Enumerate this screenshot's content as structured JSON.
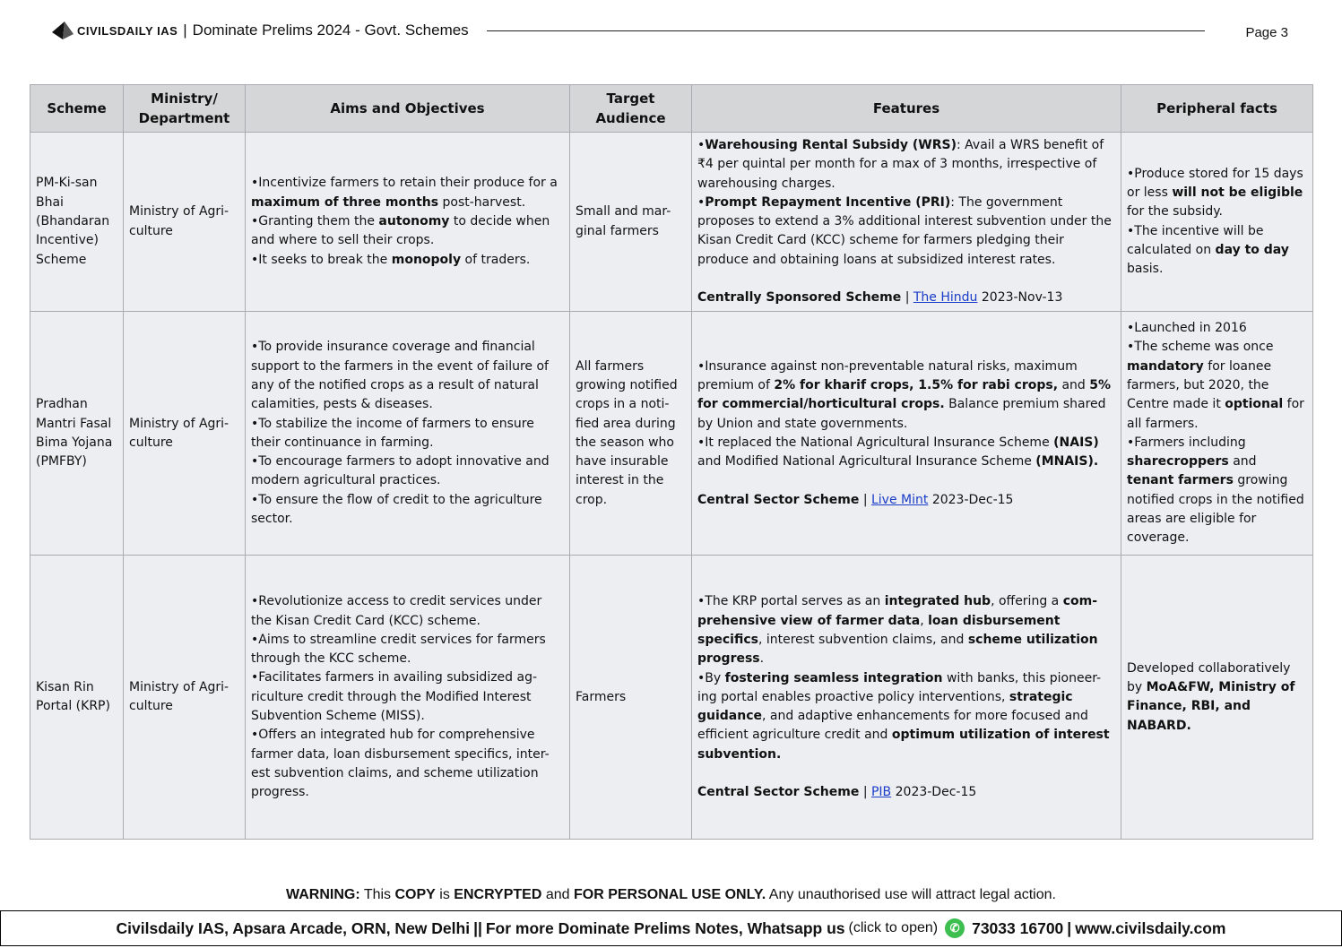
{
  "header": {
    "brand": "CIVILSDAILY IAS",
    "separator": "|",
    "title": "Dominate Prelims 2024 - Govt. Schemes",
    "page": "Page 3"
  },
  "table": {
    "columns": [
      "Scheme",
      "Ministry/ Department",
      "Aims and Objectives",
      "Target Audience",
      "Features",
      "Peripheral facts"
    ],
    "rows": [
      {
        "scheme": "PM-Ki-san Bhai (Bhandaran Incentive) Scheme",
        "ministry": "Ministry of Agri-culture",
        "aims": [
          [
            {
              "t": "Incentivize farmers to retain their produce for a "
            },
            {
              "t": "maximum of three months",
              "b": true
            },
            {
              "t": " post-harvest."
            }
          ],
          [
            {
              "t": "Granting them the "
            },
            {
              "t": "autonomy",
              "b": true
            },
            {
              "t": " to decide when and where to sell their crops."
            }
          ],
          [
            {
              "t": "It seeks to break the "
            },
            {
              "t": "monopoly",
              "b": true
            },
            {
              "t": " of traders."
            }
          ]
        ],
        "audience": "Small and mar-ginal farmers",
        "features": [
          [
            {
              "t": "Warehousing Rental Subsidy (WRS)",
              "b": true
            },
            {
              "t": ": Avail a WRS benefit of ₹4 per quintal per month for a max of 3 months, irrespective of warehousing charges."
            }
          ],
          [
            {
              "t": "Prompt Repayment Incentive (PRI)",
              "b": true
            },
            {
              "t": ": The government proposes to extend a 3% additional interest subvention under the Kisan Credit Card (KCC) scheme for farmers pledging their produce and obtaining loans at subsidized interest rates."
            }
          ]
        ],
        "source": {
          "type": "Centrally Sponsored Scheme",
          "sep": "|",
          "link": "The Hindu",
          "date": "2023-Nov-13"
        },
        "facts": [
          [
            {
              "t": "Produce stored for 15 days or less "
            },
            {
              "t": "will not be eligible",
              "b": true
            },
            {
              "t": " for the subsidy."
            }
          ],
          [
            {
              "t": "The incentive will be calculated on "
            },
            {
              "t": "day to day",
              "b": true
            },
            {
              "t": " basis."
            }
          ]
        ]
      },
      {
        "scheme": "Pradhan Mantri Fasal Bima Yojana (PMFBY)",
        "ministry": "Ministry of Agri-culture",
        "aims": [
          [
            {
              "t": "To provide insurance coverage and financial support to the farmers in the event of failure of any of the notified crops as a result of natural calamities, pests & diseases."
            }
          ],
          [
            {
              "t": "To stabilize the income of farmers to ensure their continuance in farming."
            }
          ],
          [
            {
              "t": "To encourage farmers to adopt innovative and modern agricultural practices."
            }
          ],
          [
            {
              "t": "To ensure the flow of credit to the agriculture sector."
            }
          ]
        ],
        "audience": "All farmers growing notified crops in a noti-fied area during the season who have insurable interest in the crop.",
        "features": [
          [
            {
              "t": "Insurance against non-preventable natural risks, maximum premium of "
            },
            {
              "t": "2% for kharif crops, 1.5% for rabi crops,",
              "b": true
            },
            {
              "t": " and "
            },
            {
              "t": "5% for commercial/horticultural crops.",
              "b": true
            },
            {
              "t": " Balance premium shared by Union and state governments."
            }
          ],
          [
            {
              "t": "It replaced the National Agricultural Insurance Scheme "
            },
            {
              "t": "(NAIS)",
              "b": true
            },
            {
              "t": " and Modified National Agricultural Insurance Scheme "
            },
            {
              "t": "(MNAIS).",
              "b": true
            }
          ]
        ],
        "source": {
          "type": "Central Sector Scheme",
          "sep": "|",
          "link": "Live Mint",
          "date": "2023-Dec-15"
        },
        "facts": [
          [
            {
              "t": "Launched in 2016"
            }
          ],
          [
            {
              "t": "The scheme was once "
            },
            {
              "t": "mandatory",
              "b": true
            },
            {
              "t": " for loanee farmers, but 2020, the Centre made it "
            },
            {
              "t": "optional",
              "b": true
            },
            {
              "t": " for all farmers."
            }
          ],
          [
            {
              "t": "Farmers including "
            },
            {
              "t": "sharecroppers",
              "b": true
            },
            {
              "t": " and "
            },
            {
              "t": "tenant farmers",
              "b": true
            },
            {
              "t": " growing notified crops in the notified areas are eligible for coverage."
            }
          ]
        ]
      },
      {
        "scheme": "Kisan Rin Portal (KRP)",
        "ministry": "Ministry of Agri-culture",
        "aims": [
          [
            {
              "t": "Revolutionize access to credit services under the Kisan Credit Card (KCC) scheme."
            }
          ],
          [
            {
              "t": "Aims to streamline credit services for farmers through the KCC scheme."
            }
          ],
          [
            {
              "t": "Facilitates farmers in availing subsidized ag-riculture credit through the Modified Interest Subvention Scheme (MISS)."
            }
          ],
          [
            {
              "t": "Offers an integrated hub for comprehensive farmer data, loan disbursement specifics, inter-est subvention claims, and scheme utilization progress."
            }
          ]
        ],
        "audience": "Farmers",
        "features": [
          [
            {
              "t": "The KRP portal serves as an "
            },
            {
              "t": "integrated hub",
              "b": true
            },
            {
              "t": ", offering a "
            },
            {
              "t": "com-prehensive view of farmer data",
              "b": true
            },
            {
              "t": ", "
            },
            {
              "t": "loan disbursement specifics",
              "b": true
            },
            {
              "t": ", interest subvention claims, and "
            },
            {
              "t": "scheme utilization progress",
              "b": true
            },
            {
              "t": "."
            }
          ],
          [
            {
              "t": "By "
            },
            {
              "t": "fostering seamless integration",
              "b": true
            },
            {
              "t": " with banks, this pioneer-ing portal enables proactive policy interventions, "
            },
            {
              "t": "strategic guidance",
              "b": true
            },
            {
              "t": ", and adaptive enhancements for more focused and efficient agriculture credit and "
            },
            {
              "t": "optimum utilization of interest subvention.",
              "b": true
            }
          ]
        ],
        "source": {
          "type": "Central Sector Scheme",
          "sep": "|",
          "link": "PIB",
          "date": "2023-Dec-15"
        },
        "facts_plain": [
          {
            "t": "Developed collaboratively by "
          },
          {
            "t": "MoA&FW, Ministry of Finance, RBI, and NABARD.",
            "b": true
          }
        ]
      }
    ]
  },
  "warning": [
    {
      "t": "WARNING:",
      "b": true
    },
    {
      "t": " This "
    },
    {
      "t": "COPY",
      "b": true
    },
    {
      "t": " is "
    },
    {
      "t": "ENCRYPTED",
      "b": true
    },
    {
      "t": " and "
    },
    {
      "t": "FOR PERSONAL USE ONLY.",
      "b": true
    },
    {
      "t": " Any unauthorised use will attract legal action."
    }
  ],
  "footer": {
    "address": "Civilsdaily IAS, Apsara Arcade, ORN, New Delhi",
    "sep1": "||",
    "promo": "For more Dominate Prelims Notes, Whatsapp us",
    "click": "(click to open)",
    "icon": "whatsapp-icon",
    "phone": "73033 16700",
    "sep2": "|",
    "site": "www.civilsdaily.com"
  }
}
